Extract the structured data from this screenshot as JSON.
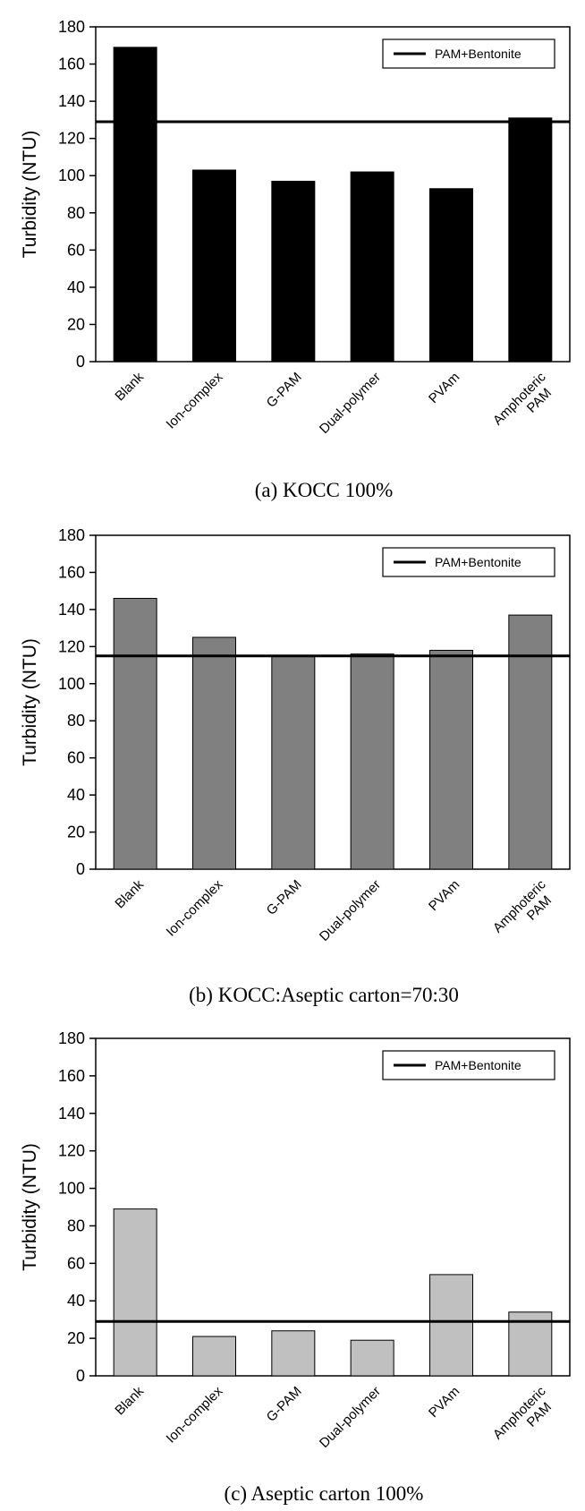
{
  "chart_data": [
    {
      "type": "bar",
      "caption": "(a) KOCC 100%",
      "ylabel": "Turbidity (NTU)",
      "ylim": [
        0,
        180
      ],
      "yticks": [
        "0",
        "20",
        "40",
        "60",
        "80",
        "100",
        "120",
        "140",
        "160",
        "180"
      ],
      "categories": [
        "Blank",
        "Ion-complex",
        "G-PAM",
        "Dual-polymer",
        "PVAm",
        [
          "Amphoteric",
          "PAM"
        ]
      ],
      "values": [
        169,
        103,
        97,
        102,
        93,
        131
      ],
      "bar_color": "#000000",
      "reference_line": {
        "name": "PAM+Bentonite",
        "value": 129
      },
      "legend_position": "top-right"
    },
    {
      "type": "bar",
      "caption": "(b) KOCC:Aseptic carton=70:30",
      "ylabel": "Turbidity (NTU)",
      "ylim": [
        0,
        180
      ],
      "yticks": [
        "0",
        "20",
        "40",
        "60",
        "80",
        "100",
        "120",
        "140",
        "160",
        "180"
      ],
      "categories": [
        "Blank",
        "Ion-complex",
        "G-PAM",
        "Dual-polymer",
        "PVAm",
        [
          "Amphoteric",
          "PAM"
        ]
      ],
      "values": [
        146,
        125,
        115,
        116,
        118,
        137
      ],
      "bar_color": "#808080",
      "reference_line": {
        "name": "PAM+Bentonite",
        "value": 115
      },
      "legend_position": "top-right"
    },
    {
      "type": "bar",
      "caption": "(c) Aseptic carton 100%",
      "ylabel": "Turbidity (NTU)",
      "ylim": [
        0,
        180
      ],
      "yticks": [
        "0",
        "20",
        "40",
        "60",
        "80",
        "100",
        "120",
        "140",
        "160",
        "180"
      ],
      "categories": [
        "Blank",
        "Ion-complex",
        "G-PAM",
        "Dual-polymer",
        "PVAm",
        [
          "Amphoteric",
          "PAM"
        ]
      ],
      "values": [
        89,
        21,
        24,
        19,
        54,
        34
      ],
      "bar_color": "#c0c0c0",
      "reference_line": {
        "name": "PAM+Bentonite",
        "value": 29
      },
      "legend_position": "top-right"
    }
  ]
}
